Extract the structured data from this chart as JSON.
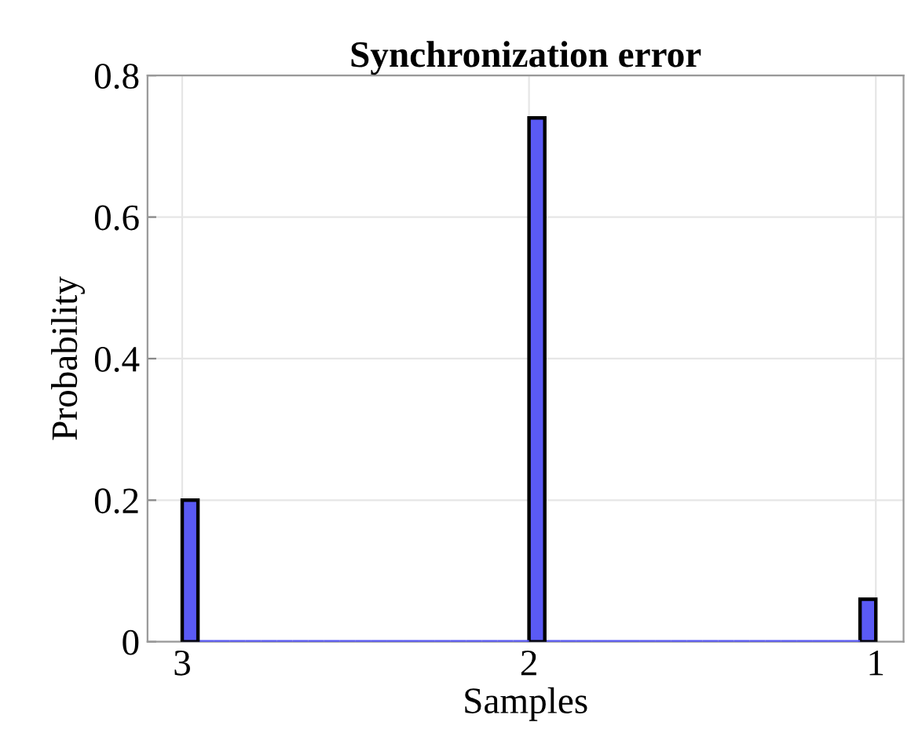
{
  "chart_data": {
    "type": "histogram",
    "title": "Synchronization error",
    "xlabel": "Samples",
    "ylabel": "Probability",
    "bins": [
      1,
      1.0455,
      1.0909,
      1.1364,
      1.1818,
      1.2273,
      1.2727,
      1.3182,
      1.3636,
      1.4091,
      1.4545,
      1.5,
      1.5455,
      1.5909,
      1.6364,
      1.6818,
      1.7273,
      1.7727,
      1.8182,
      1.8636,
      1.9091,
      1.9545,
      2,
      2.0455,
      2.0909,
      2.1364,
      2.1818,
      2.2273,
      2.2727,
      2.3182,
      2.3636,
      2.4091,
      2.4545,
      2.5,
      2.5455,
      2.5909,
      2.6364,
      2.6818,
      2.7273,
      2.7727,
      2.8182,
      2.8636,
      2.9091,
      2.9545,
      3
    ],
    "values": [
      0.06,
      0,
      0,
      0,
      0,
      0,
      0,
      0,
      0,
      0,
      0,
      0,
      0,
      0,
      0,
      0,
      0,
      0,
      0,
      0,
      0,
      0.74,
      0,
      0,
      0,
      0,
      0,
      0,
      0,
      0,
      0,
      0,
      0,
      0,
      0,
      0,
      0,
      0,
      0,
      0,
      0,
      0,
      0,
      0.2
    ],
    "color": "#5a5af5",
    "xlim": [
      3.1,
      0.92
    ],
    "xticks": [
      1,
      2,
      3
    ],
    "ylim": [
      0,
      0.8
    ],
    "yticks": [
      0,
      0.2,
      0.4,
      0.6,
      0.8
    ],
    "grid": true
  }
}
